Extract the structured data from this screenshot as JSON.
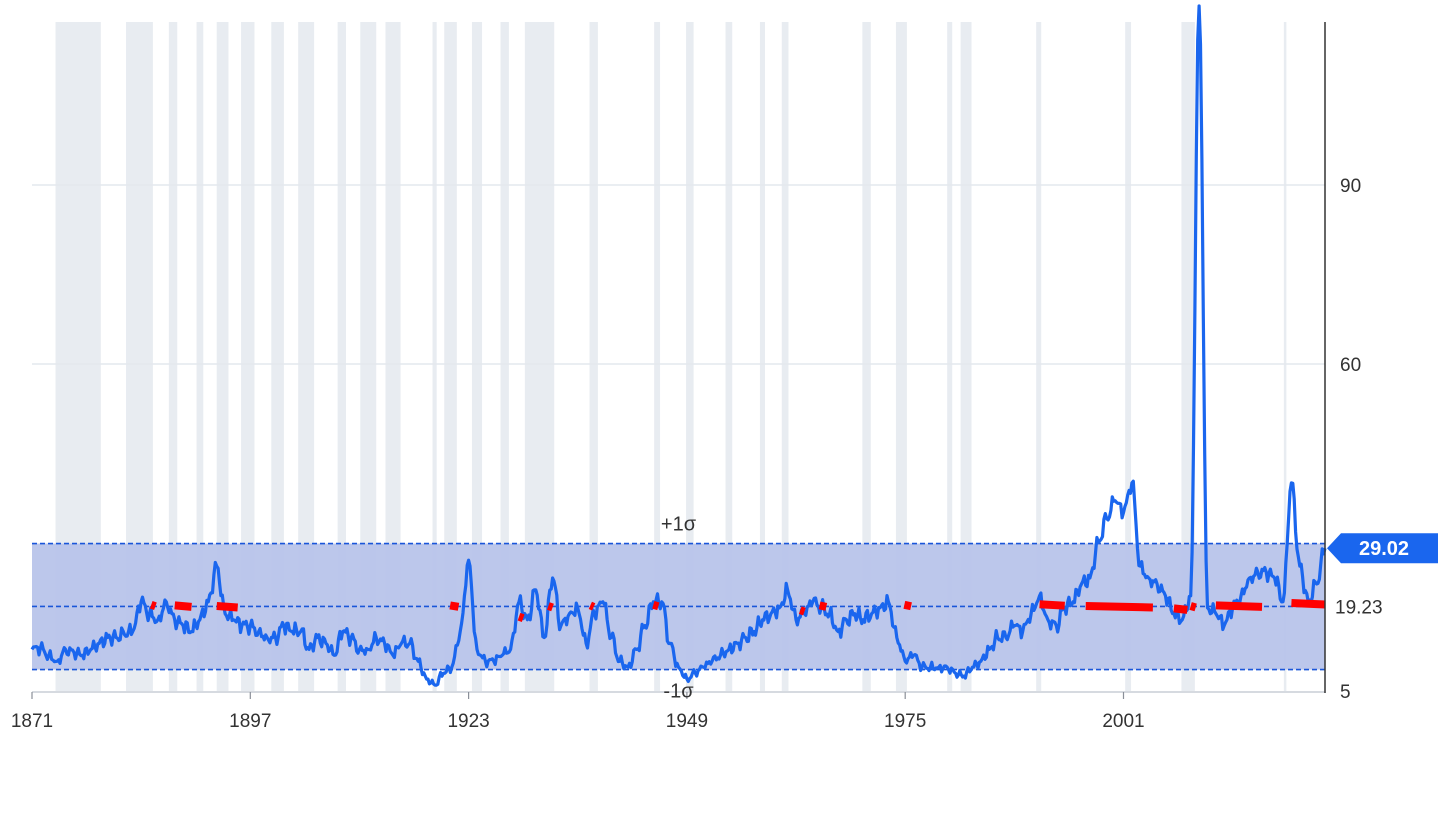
{
  "chart_data": {
    "type": "line",
    "title": "",
    "xlabel": "",
    "ylabel": "",
    "xlim": [
      1871,
      2025
    ],
    "ylim": [
      5,
      120
    ],
    "x_ticks": [
      1871,
      1897,
      1923,
      1949,
      1975,
      2001
    ],
    "x_tick_labels": [
      "1871",
      "1897",
      "1923",
      "1949",
      "1975",
      "2001"
    ],
    "y_ticks": [
      5,
      60,
      90
    ],
    "y_tick_labels": [
      "5",
      "60",
      "90"
    ],
    "grid": true,
    "y_axis_side": "right",
    "band": {
      "upper": 29.8,
      "mean": 19.23,
      "lower": 8.6,
      "upper_label": "+1σ",
      "lower_label": "-1σ",
      "mean_label": "19.23"
    },
    "current_value": {
      "x": 2025,
      "y": 29.02,
      "label": "29.02"
    },
    "colors": {
      "line": "#1a66ee",
      "band_fill": "#b8c4ea",
      "band_line": "#1a56d9",
      "recession_shade": "#e8ecf1",
      "red_segments": "#ff0000",
      "badge": "#1a66ee",
      "grid": "#e4e8ee",
      "axis": "#333333"
    },
    "recessions": [
      [
        1873.8,
        1879.2
      ],
      [
        1882.2,
        1885.4
      ],
      [
        1887.3,
        1888.3
      ],
      [
        1890.6,
        1891.4
      ],
      [
        1893.0,
        1894.4
      ],
      [
        1895.9,
        1897.5
      ],
      [
        1899.5,
        1901.0
      ],
      [
        1902.7,
        1904.6
      ],
      [
        1907.4,
        1908.4
      ],
      [
        1910.1,
        1912.0
      ],
      [
        1913.1,
        1914.9
      ],
      [
        1918.7,
        1919.2
      ],
      [
        1920.1,
        1921.6
      ],
      [
        1923.4,
        1924.6
      ],
      [
        1926.8,
        1927.8
      ],
      [
        1929.7,
        1933.2
      ],
      [
        1937.4,
        1938.4
      ],
      [
        1945.1,
        1945.8
      ],
      [
        1948.9,
        1949.8
      ],
      [
        1953.6,
        1954.4
      ],
      [
        1957.7,
        1958.3
      ],
      [
        1960.3,
        1961.1
      ],
      [
        1969.9,
        1970.9
      ],
      [
        1973.9,
        1975.2
      ],
      [
        1980.0,
        1980.6
      ],
      [
        1981.6,
        1982.9
      ],
      [
        1990.6,
        1991.2
      ],
      [
        2001.2,
        2001.9
      ],
      [
        2007.9,
        2009.5
      ],
      [
        2020.1,
        2020.4
      ]
    ],
    "series": [
      {
        "x": [
          1871,
          1872,
          1873,
          1874,
          1875,
          1876,
          1877,
          1878,
          1879,
          1880,
          1881,
          1882,
          1883,
          1884,
          1885,
          1886,
          1887,
          1888,
          1889,
          1890,
          1891,
          1892,
          1893,
          1894,
          1895,
          1896,
          1897,
          1898,
          1899,
          1900,
          1901,
          1902,
          1903,
          1904,
          1905,
          1906,
          1907,
          1908,
          1909,
          1910,
          1911,
          1912,
          1913,
          1914,
          1915,
          1916,
          1917,
          1918,
          1919,
          1920,
          1921,
          1922,
          1923,
          1924,
          1925,
          1926,
          1927,
          1928,
          1929,
          1930,
          1931,
          1932,
          1933,
          1934,
          1935,
          1936,
          1937,
          1938,
          1939,
          1940,
          1941,
          1942,
          1943,
          1944,
          1945,
          1946,
          1947,
          1948,
          1949,
          1950,
          1951,
          1952,
          1953,
          1954,
          1955,
          1956,
          1957,
          1958,
          1959,
          1960,
          1961,
          1962,
          1963,
          1964,
          1965,
          1966,
          1967,
          1968,
          1969,
          1970,
          1971,
          1972,
          1973,
          1974,
          1975,
          1976,
          1977,
          1978,
          1979,
          1980,
          1981,
          1982,
          1983,
          1984,
          1985,
          1986,
          1987,
          1988,
          1989,
          1990,
          1991,
          1992,
          1993,
          1994,
          1995,
          1996,
          1997,
          1998,
          1999,
          2000,
          2001,
          2002,
          2003,
          2004,
          2005,
          2006,
          2007,
          2008,
          2009,
          2010,
          2011,
          2012,
          2013,
          2014,
          2015,
          2016,
          2017,
          2018,
          2019,
          2020,
          2021,
          2022,
          2023,
          2024,
          2025
        ],
        "y": [
          12,
          12.2,
          11,
          10,
          12,
          11.5,
          11,
          12,
          13,
          14,
          14,
          14.5,
          15,
          20,
          18,
          17,
          20,
          17,
          16,
          15,
          17,
          20,
          26,
          18,
          17,
          16,
          16,
          15,
          14,
          14,
          16,
          15,
          15,
          12,
          14,
          13,
          11,
          15,
          14,
          12,
          12,
          14,
          13,
          11,
          13,
          13,
          10,
          7,
          6,
          8,
          9,
          15,
          27,
          12,
          10,
          10,
          11,
          12,
          20,
          17,
          22,
          14,
          24,
          16,
          18,
          19,
          13,
          18,
          20,
          14,
          10,
          9,
          12,
          16,
          20,
          20,
          13,
          9,
          7,
          8,
          9,
          10,
          11,
          12,
          13,
          14,
          15,
          17,
          18,
          19,
          22,
          17,
          18,
          20,
          19,
          18,
          15,
          17,
          18,
          17,
          18,
          19,
          20,
          14,
          10,
          11,
          9,
          9,
          9,
          9,
          8,
          7.5,
          9,
          10,
          12,
          14,
          14,
          16,
          15,
          18,
          21,
          17,
          16,
          19,
          20,
          23,
          24,
          30,
          34,
          37,
          35,
          40,
          26,
          24,
          23,
          21,
          18,
          17,
          21,
          120,
          19,
          18,
          16,
          19,
          21,
          24,
          25,
          25,
          24,
          20,
          40,
          26,
          20,
          23,
          29
        ],
        "smooth": true
      }
    ],
    "red_segments": [
      [
        1885.2,
        1885.7,
        19.5
      ],
      [
        1888.0,
        1890.0,
        19.4
      ],
      [
        1893.0,
        1895.5,
        19.3
      ],
      [
        1920.8,
        1921.8,
        19.4
      ],
      [
        1929.0,
        1929.5,
        17.5
      ],
      [
        1932.5,
        1933.0,
        19.3
      ],
      [
        1937.5,
        1937.9,
        19.4
      ],
      [
        1945.0,
        1945.6,
        19.5
      ],
      [
        1962.5,
        1963.0,
        18.6
      ],
      [
        1964.8,
        1965.6,
        19.4
      ],
      [
        1974.9,
        1975.7,
        19.5
      ],
      [
        1991.0,
        1994.0,
        19.6
      ],
      [
        1996.5,
        2004.5,
        19.3
      ],
      [
        2007.0,
        2008.6,
        18.9
      ],
      [
        2009.0,
        2009.6,
        19.3
      ],
      [
        2012.0,
        2017.5,
        19.4
      ],
      [
        2021.0,
        2025.0,
        19.8
      ]
    ]
  }
}
